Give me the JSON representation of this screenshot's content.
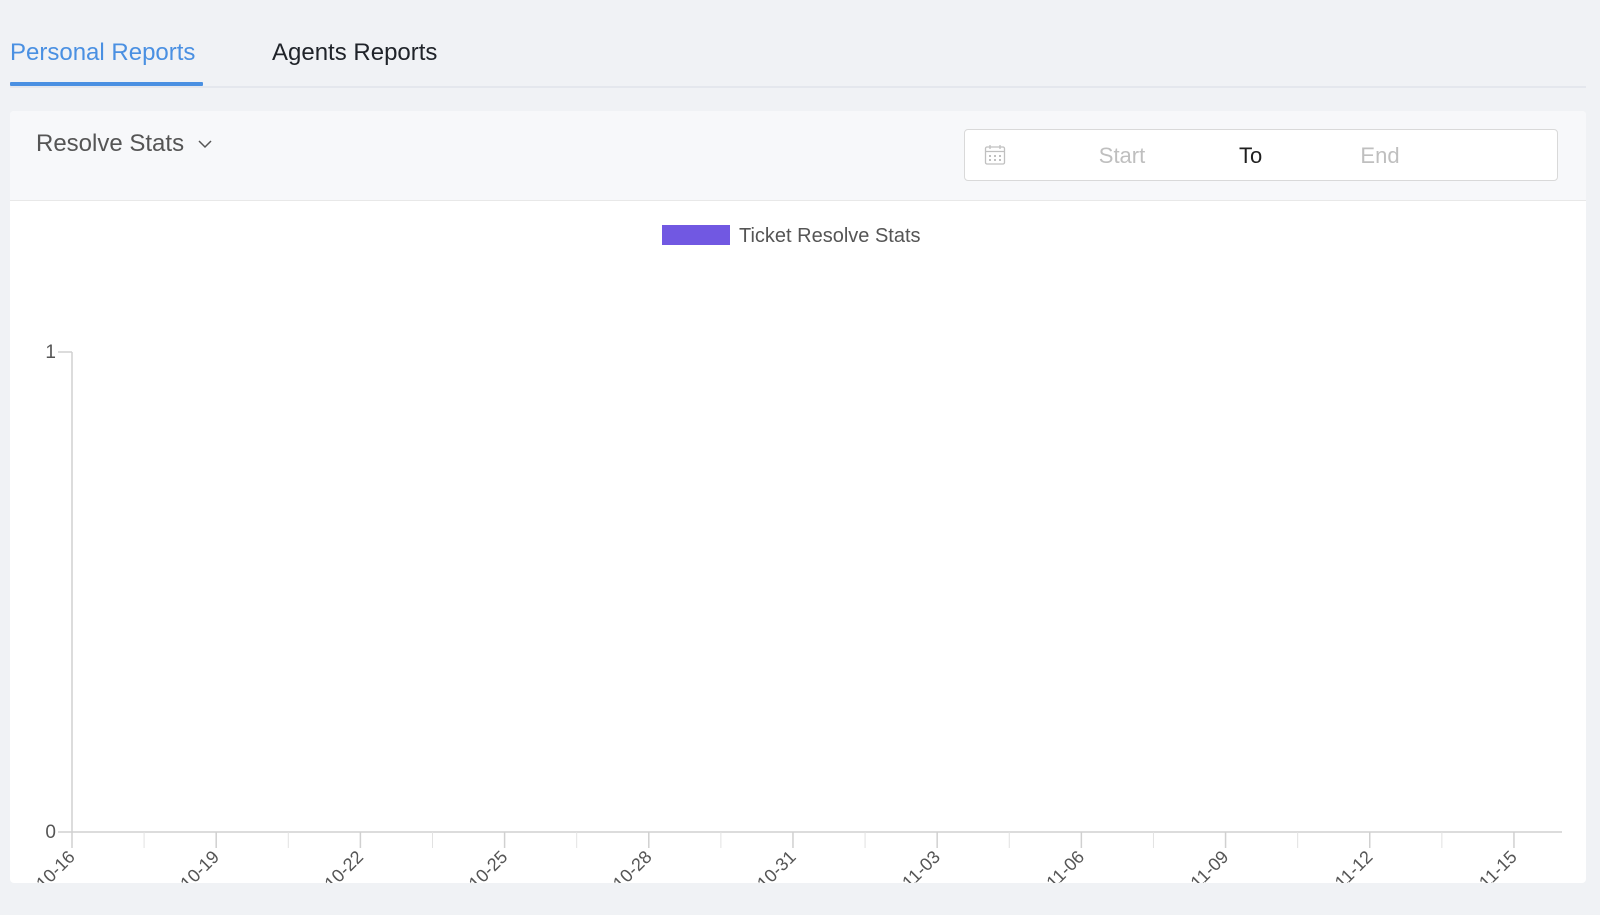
{
  "tabs": [
    {
      "label": "Personal Reports",
      "active": true
    },
    {
      "label": "Agents Reports",
      "active": false
    }
  ],
  "report_select": {
    "value": "Resolve Stats",
    "icon": "chevron-down-icon"
  },
  "date_range": {
    "icon": "calendar-icon",
    "start_placeholder": "Start",
    "separator": "To",
    "end_placeholder": "End"
  },
  "colors": {
    "accent": "#4a90e2",
    "series": "#7158e2",
    "axis": "#d0d0d0",
    "text": "#555555"
  },
  "chart_data": {
    "type": "bar",
    "title": "",
    "legend": [
      "Ticket Resolve Stats"
    ],
    "legend_position": "top-center",
    "x": [
      "2021-10-16",
      "2021-10-19",
      "2021-10-22",
      "2021-10-25",
      "2021-10-28",
      "2021-10-31",
      "2021-11-03",
      "2021-11-06",
      "2021-11-09",
      "2021-11-12",
      "2021-11-15"
    ],
    "series": [
      {
        "name": "Ticket Resolve Stats",
        "values": [
          0,
          0,
          0,
          0,
          0,
          0,
          0,
          0,
          0,
          0,
          0
        ]
      }
    ],
    "y_ticks": [
      "0",
      "1"
    ],
    "ylim": [
      0,
      1
    ],
    "grid": false
  }
}
